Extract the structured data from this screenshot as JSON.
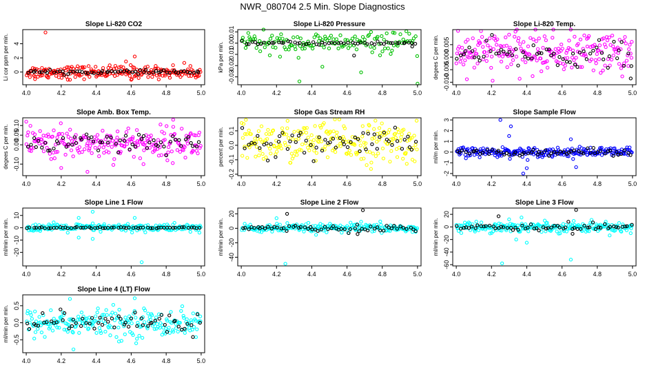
{
  "page": {
    "title": "NWR_080704  2.5 Min. Slope Diagnostics"
  },
  "chart_data": [
    {
      "type": "scatter",
      "title": "Slope Li-820 CO2",
      "ylabel": "Li cor ppm per min.",
      "xlim": [
        3.98,
        5.02
      ],
      "xticks": [
        4.0,
        4.2,
        4.4,
        4.6,
        4.8,
        5.0
      ],
      "ylim": [
        -1.8,
        6.0
      ],
      "yticks": [
        0,
        2,
        4
      ],
      "ytick_labels": [
        "0",
        "2",
        "4"
      ],
      "series": [
        {
          "name": "all",
          "color": "#ff0000",
          "center": 0,
          "spread": 0.45,
          "n": 220,
          "outliers": [
            [
              4.11,
              5.6
            ],
            [
              4.62,
              2.2
            ],
            [
              4.57,
              1.5
            ],
            [
              4.05,
              -1.0
            ],
            [
              4.25,
              -1.1
            ],
            [
              4.6,
              -1.1
            ]
          ]
        },
        {
          "name": "subset",
          "color": "#000000",
          "center": 0,
          "spread": 0.12,
          "n": 60,
          "outliers": []
        }
      ]
    },
    {
      "type": "scatter",
      "title": "Slope Li-820 Pressure",
      "ylabel": "kPa per min.",
      "xlim": [
        3.98,
        5.02
      ],
      "xticks": [
        4.0,
        4.2,
        4.4,
        4.6,
        4.8,
        5.0
      ],
      "ylim": [
        -0.037,
        0.012
      ],
      "yticks": [
        0.01,
        0.0,
        -0.01,
        -0.02,
        -0.03
      ],
      "ytick_labels": [
        "0.01",
        "0.00",
        "-0.01",
        "-0.02",
        "-0.03"
      ],
      "series": [
        {
          "name": "all",
          "color": "#00c000",
          "center": 0,
          "spread": 0.0045,
          "n": 140,
          "outliers": [
            [
              4.33,
              -0.034
            ],
            [
              5.0,
              -0.036
            ],
            [
              4.46,
              -0.021
            ],
            [
              4.68,
              -0.026
            ],
            [
              4.22,
              -0.012
            ],
            [
              4.04,
              0.009
            ],
            [
              4.87,
              0.009
            ]
          ]
        },
        {
          "name": "subset",
          "color": "#000000",
          "center": 0,
          "spread": 0.0008,
          "n": 55,
          "outliers": [
            [
              4.64,
              -0.011
            ],
            [
              4.97,
              -0.003
            ]
          ]
        }
      ]
    },
    {
      "type": "scatter",
      "title": "Slope Li-820 Temp.",
      "ylabel": "degees C per min.",
      "xlim": [
        3.98,
        5.02
      ],
      "xticks": [
        4.0,
        4.2,
        4.4,
        4.6,
        4.8,
        5.0
      ],
      "ylim": [
        -0.011,
        0.011
      ],
      "yticks": [
        0.005,
        0.0,
        -0.005,
        -0.01
      ],
      "ytick_labels": [
        "0.005",
        "0.000",
        "-0.005",
        "-0.010"
      ],
      "series": [
        {
          "name": "all",
          "color": "#ff00ff",
          "center": 0.002,
          "spread": 0.004,
          "n": 230,
          "outliers": [
            [
              4.01,
              0.0105
            ],
            [
              4.06,
              -0.0088
            ],
            [
              4.3,
              0.009
            ]
          ]
        },
        {
          "name": "subset",
          "color": "#000000",
          "center": 0.001,
          "spread": 0.0025,
          "n": 60,
          "outliers": [
            [
              4.99,
              -0.0085
            ]
          ]
        }
      ]
    },
    {
      "type": "scatter",
      "title": "Slope Amb. Box Temp.",
      "ylabel": "degees C per min.",
      "xlim": [
        3.98,
        5.02
      ],
      "xticks": [
        4.0,
        4.2,
        4.4,
        4.6,
        4.8,
        5.0
      ],
      "ylim": [
        -0.16,
        0.14
      ],
      "yticks": [
        -0.1,
        0.0,
        0.05,
        0.1
      ],
      "ytick_labels": [
        "-0.10",
        "0.00",
        "0.05",
        "0.10"
      ],
      "series": [
        {
          "name": "all",
          "color": "#ff00ff",
          "center": 0.01,
          "spread": 0.04,
          "n": 230,
          "outliers": [
            [
              4.0,
              0.12
            ],
            [
              4.84,
              0.13
            ],
            [
              4.2,
              -0.12
            ],
            [
              4.35,
              -0.14
            ],
            [
              4.67,
              -0.1
            ]
          ]
        },
        {
          "name": "subset",
          "color": "#000000",
          "center": 0.0,
          "spread": 0.03,
          "n": 60,
          "outliers": []
        }
      ]
    },
    {
      "type": "scatter",
      "title": "Slope Gas Stream RH",
      "ylabel": "percent per min.",
      "xlim": [
        3.98,
        5.02
      ],
      "xticks": [
        4.0,
        4.2,
        4.4,
        4.6,
        4.8,
        5.0
      ],
      "ylim": [
        -0.21,
        0.19
      ],
      "yticks": [
        -0.2,
        -0.1,
        0.0,
        0.1
      ],
      "ytick_labels": [
        "-0.2",
        "-0.1",
        "0.0",
        "0.1"
      ],
      "series": [
        {
          "name": "all",
          "color": "#ffff00",
          "center": 0.02,
          "spread": 0.07,
          "n": 240,
          "outliers": []
        },
        {
          "name": "subset",
          "color": "#000000",
          "center": 0.01,
          "spread": 0.05,
          "n": 60,
          "outliers": []
        }
      ]
    },
    {
      "type": "scatter",
      "title": "Slope Sample Flow",
      "ylabel": "ml/m per min.",
      "xlim": [
        3.98,
        5.02
      ],
      "xticks": [
        4.0,
        4.2,
        4.4,
        4.6,
        4.8,
        5.0
      ],
      "ylim": [
        -2.2,
        3.2
      ],
      "yticks": [
        -2,
        -1,
        0,
        1,
        2,
        3
      ],
      "ytick_labels": [
        "-2",
        "-1",
        "0",
        "1",
        "2",
        "3"
      ],
      "series": [
        {
          "name": "all",
          "color": "#0000ff",
          "center": 0,
          "spread": 0.22,
          "n": 230,
          "outliers": [
            [
              4.25,
              3.0
            ],
            [
              4.31,
              2.4
            ],
            [
              4.3,
              1.5
            ],
            [
              4.4,
              -1.5
            ],
            [
              4.38,
              -2.0
            ],
            [
              4.65,
              1.2
            ],
            [
              4.68,
              -1.4
            ]
          ]
        },
        {
          "name": "subset",
          "color": "#000000",
          "center": 0,
          "spread": 0.15,
          "n": 60,
          "outliers": []
        }
      ]
    },
    {
      "type": "scatter",
      "title": "Slope Line 1 Flow",
      "ylabel": "ml/min per min.",
      "xlim": [
        3.98,
        5.02
      ],
      "xticks": [
        4.0,
        4.2,
        4.4,
        4.6,
        4.8,
        5.0
      ],
      "ylim": [
        -31,
        16
      ],
      "yticks": [
        -20,
        -10,
        0,
        10
      ],
      "ytick_labels": [
        "-20",
        "-10",
        "0",
        "10"
      ],
      "series": [
        {
          "name": "all",
          "color": "#00ffff",
          "center": 0,
          "spread": 1.6,
          "n": 220,
          "outliers": [
            [
              4.66,
              -28
            ],
            [
              4.3,
              8
            ],
            [
              4.38,
              13
            ],
            [
              4.62,
              8
            ],
            [
              4.3,
              -8
            ],
            [
              4.38,
              -9
            ],
            [
              4.99,
              -4
            ]
          ]
        },
        {
          "name": "subset",
          "color": "#000000",
          "center": 0,
          "spread": 0.3,
          "n": 60,
          "outliers": []
        }
      ]
    },
    {
      "type": "scatter",
      "title": "Slope Line 2 Flow",
      "ylabel": "ml/min per min.",
      "xlim": [
        3.98,
        5.02
      ],
      "xticks": [
        4.0,
        4.2,
        4.4,
        4.6,
        4.8,
        5.0
      ],
      "ylim": [
        -52,
        28
      ],
      "yticks": [
        -40,
        -20,
        0,
        20
      ],
      "ytick_labels": [
        "-40",
        "-20",
        "0",
        "20"
      ],
      "series": [
        {
          "name": "all",
          "color": "#00ffff",
          "center": 0,
          "spread": 3,
          "n": 220,
          "outliers": [
            [
              4.25,
              -49
            ],
            [
              4.68,
              9
            ],
            [
              4.2,
              14
            ],
            [
              4.99,
              -5
            ]
          ]
        },
        {
          "name": "subset",
          "color": "#000000",
          "center": 0,
          "spread": 2,
          "n": 60,
          "outliers": [
            [
              4.26,
              20
            ],
            [
              4.69,
              25
            ],
            [
              4.66,
              -8
            ]
          ]
        }
      ]
    },
    {
      "type": "scatter",
      "title": "Slope Line 3 Flow",
      "ylabel": "ml/min per min.",
      "xlim": [
        3.98,
        5.02
      ],
      "xticks": [
        4.0,
        4.2,
        4.4,
        4.6,
        4.8,
        5.0
      ],
      "ylim": [
        -62,
        30
      ],
      "yticks": [
        -60,
        -40,
        -20,
        0,
        20
      ],
      "ytick_labels": [
        "-60",
        "-40",
        "-20",
        "0",
        "20"
      ],
      "series": [
        {
          "name": "all",
          "color": "#00ffff",
          "center": 0,
          "spread": 4,
          "n": 230,
          "outliers": [
            [
              4.26,
              -58
            ],
            [
              4.65,
              -52
            ],
            [
              4.3,
              12
            ],
            [
              4.37,
              15
            ],
            [
              4.34,
              -20
            ],
            [
              4.4,
              -25
            ],
            [
              4.99,
              -10
            ]
          ]
        },
        {
          "name": "subset",
          "color": "#000000",
          "center": 0,
          "spread": 3,
          "n": 60,
          "outliers": [
            [
              4.68,
              27
            ],
            [
              4.24,
              17
            ],
            [
              4.66,
              -11
            ]
          ]
        }
      ]
    },
    {
      "type": "scatter",
      "title": "Slope Line 4 (LT) Flow",
      "ylabel": "ml/min per min.",
      "xlim": [
        3.98,
        5.02
      ],
      "xticks": [
        4.0,
        4.2,
        4.4,
        4.6,
        4.8,
        5.0
      ],
      "ylim": [
        -0.88,
        0.82
      ],
      "yticks": [
        -0.5,
        0.0,
        0.5
      ],
      "ytick_labels": [
        "-0.5",
        "0.0",
        "0.5"
      ],
      "series": [
        {
          "name": "all",
          "color": "#00ffff",
          "center": 0,
          "spread": 0.2,
          "n": 230,
          "outliers": [
            [
              4.27,
              -0.78
            ],
            [
              4.25,
              0.7
            ],
            [
              4.62,
              0.72
            ],
            [
              4.53,
              -0.55
            ]
          ]
        },
        {
          "name": "subset",
          "color": "#000000",
          "center": 0,
          "spread": 0.15,
          "n": 60,
          "outliers": []
        }
      ]
    }
  ]
}
